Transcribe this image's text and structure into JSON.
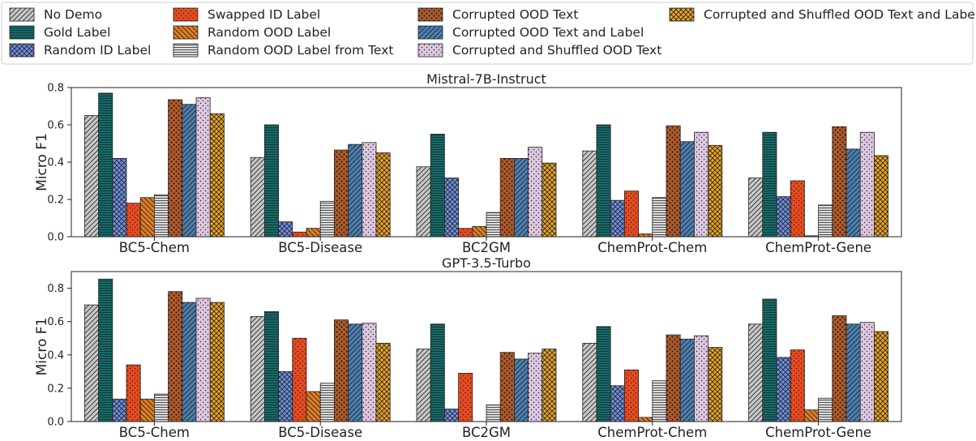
{
  "legend": {
    "items": [
      {
        "label": "No Demo",
        "color": "#c8c8c8",
        "pattern": "diag-hatch"
      },
      {
        "label": "Gold Label",
        "color": "#116d6b",
        "pattern": "horizontal-lines"
      },
      {
        "label": "Random ID Label",
        "color": "#6f8fdf",
        "pattern": "cross-hatch"
      },
      {
        "label": "Swapped ID Label",
        "color": "#e64a1e",
        "pattern": "dots"
      },
      {
        "label": "Random OOD Label",
        "color": "#e07e22",
        "pattern": "back-diag-hatch"
      },
      {
        "label": "Random OOD Label from Text",
        "color": "#dcdcdc",
        "pattern": "horizontal-lines"
      },
      {
        "label": "Corrupted OOD Text",
        "color": "#b45a28",
        "pattern": "dense-dots"
      },
      {
        "label": "Corrupted OOD Text and Label",
        "color": "#4a7fb0",
        "pattern": "diag-hatch"
      },
      {
        "label": "Corrupted and Shuffled OOD Text",
        "color": "#dcc6e0",
        "pattern": "dots"
      },
      {
        "label": "Corrupted and Shuffled OOD Text and Label",
        "color": "#eba325",
        "pattern": "cross-hatch"
      }
    ]
  },
  "chart_data": [
    {
      "type": "bar",
      "title": "Mistral-7B-Instruct",
      "xlabel": "",
      "ylabel": "Micro F1",
      "ylim": [
        0,
        0.8
      ],
      "yticks": [
        0.0,
        0.2,
        0.4,
        0.6,
        0.8
      ],
      "ytick_labels": [
        "0.0",
        "0.2",
        "0.4",
        "0.6",
        "0.8"
      ],
      "grid": false,
      "legend_position": "top",
      "categories": [
        "BC5-Chem",
        "BC5-Disease",
        "BC2GM",
        "ChemProt-Chem",
        "ChemProt-Gene"
      ],
      "series": [
        {
          "name": "No Demo",
          "values": [
            0.65,
            0.425,
            0.375,
            0.46,
            0.315
          ]
        },
        {
          "name": "Gold Label",
          "values": [
            0.77,
            0.6,
            0.55,
            0.6,
            0.56
          ]
        },
        {
          "name": "Random ID Label",
          "values": [
            0.42,
            0.08,
            0.315,
            0.195,
            0.215
          ]
        },
        {
          "name": "Swapped ID Label",
          "values": [
            0.18,
            0.025,
            0.045,
            0.245,
            0.3
          ]
        },
        {
          "name": "Random OOD Label",
          "values": [
            0.21,
            0.045,
            0.055,
            0.015,
            0.005
          ]
        },
        {
          "name": "Random OOD Label from Text",
          "values": [
            0.225,
            0.19,
            0.13,
            0.21,
            0.17
          ]
        },
        {
          "name": "Corrupted OOD Text",
          "values": [
            0.735,
            0.465,
            0.42,
            0.595,
            0.59
          ]
        },
        {
          "name": "Corrupted OOD Text and Label",
          "values": [
            0.71,
            0.495,
            0.42,
            0.51,
            0.47
          ]
        },
        {
          "name": "Corrupted and Shuffled OOD Text",
          "values": [
            0.745,
            0.505,
            0.48,
            0.56,
            0.56
          ]
        },
        {
          "name": "Corrupted and Shuffled OOD Text and Label",
          "values": [
            0.66,
            0.45,
            0.395,
            0.49,
            0.435
          ]
        }
      ]
    },
    {
      "type": "bar",
      "title": "GPT-3.5-Turbo",
      "xlabel": "",
      "ylabel": "Micro F1",
      "ylim": [
        0,
        0.9
      ],
      "yticks": [
        0.0,
        0.2,
        0.4,
        0.6,
        0.8
      ],
      "ytick_labels": [
        "0.0",
        "0.2",
        "0.4",
        "0.6",
        "0.8"
      ],
      "grid": false,
      "categories": [
        "BC5-Chem",
        "BC5-Disease",
        "BC2GM",
        "ChemProt-Chem",
        "ChemProt-Gene"
      ],
      "series": [
        {
          "name": "No Demo",
          "values": [
            0.7,
            0.63,
            0.435,
            0.47,
            0.585
          ]
        },
        {
          "name": "Gold Label",
          "values": [
            0.855,
            0.66,
            0.585,
            0.57,
            0.735
          ]
        },
        {
          "name": "Random ID Label",
          "values": [
            0.135,
            0.3,
            0.075,
            0.215,
            0.385
          ]
        },
        {
          "name": "Swapped ID Label",
          "values": [
            0.34,
            0.5,
            0.29,
            0.31,
            0.43
          ]
        },
        {
          "name": "Random OOD Label",
          "values": [
            0.135,
            0.18,
            0.0,
            0.025,
            0.07
          ]
        },
        {
          "name": "Random OOD Label from Text",
          "values": [
            0.165,
            0.23,
            0.1,
            0.245,
            0.14
          ]
        },
        {
          "name": "Corrupted OOD Text",
          "values": [
            0.78,
            0.61,
            0.415,
            0.52,
            0.635
          ]
        },
        {
          "name": "Corrupted OOD Text and Label",
          "values": [
            0.715,
            0.585,
            0.375,
            0.495,
            0.585
          ]
        },
        {
          "name": "Corrupted and Shuffled OOD Text",
          "values": [
            0.74,
            0.59,
            0.41,
            0.515,
            0.595
          ]
        },
        {
          "name": "Corrupted and Shuffled OOD Text and Label",
          "values": [
            0.715,
            0.47,
            0.435,
            0.445,
            0.54
          ]
        }
      ]
    }
  ]
}
